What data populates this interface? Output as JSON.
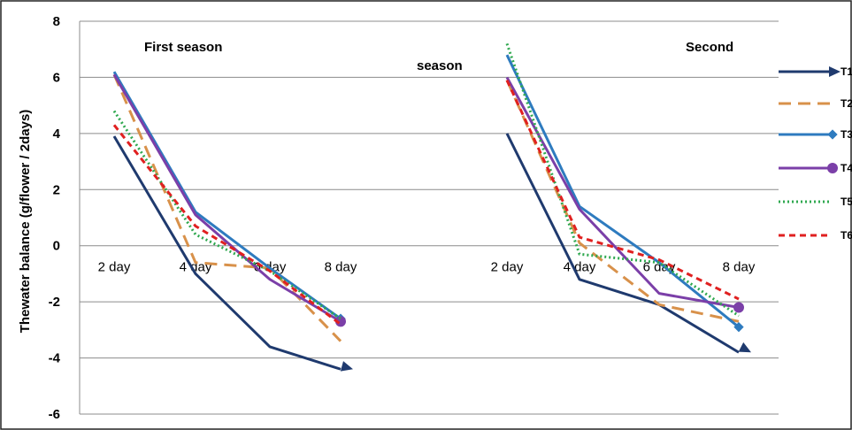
{
  "chart_data": {
    "type": "line",
    "ylabel": "Thewater balance (g/flower / 2days)",
    "ylim": [
      -6,
      8
    ],
    "yticks": [
      "-6",
      "-4",
      "-2",
      "0",
      "2",
      "4",
      "6",
      "8"
    ],
    "grid": true,
    "legend_position": "right",
    "panels": [
      {
        "title": "First season",
        "categories": [
          "2 day",
          "4 day",
          "6 day",
          "8 day"
        ]
      },
      {
        "title_part1": "Second",
        "title_part2": "season",
        "categories": [
          "2 day",
          "4 day",
          "6 day",
          "8 day"
        ]
      }
    ],
    "series": [
      {
        "name": "T1",
        "color": "#1f3a6e",
        "style": "solid",
        "marker": "arrow",
        "first": [
          3.9,
          -1.0,
          -3.6,
          -4.4
        ],
        "second": [
          4.0,
          -1.2,
          -2.1,
          -3.8
        ]
      },
      {
        "name": "T2",
        "color": "#d8914a",
        "style": "longdash",
        "marker": "none",
        "first": [
          6.1,
          -0.6,
          -0.8,
          -3.4
        ],
        "second": [
          5.9,
          0.1,
          -2.1,
          -2.7
        ]
      },
      {
        "name": "T3",
        "color": "#2e7bbf",
        "style": "solid",
        "marker": "diamond",
        "first": [
          6.2,
          1.2,
          -0.8,
          -2.6
        ],
        "second": [
          6.8,
          1.4,
          -0.6,
          -2.9
        ]
      },
      {
        "name": "T4",
        "color": "#7b3fa8",
        "style": "solid",
        "marker": "circle",
        "first": [
          6.1,
          1.1,
          -1.2,
          -2.7
        ],
        "second": [
          6.0,
          1.3,
          -1.7,
          -2.2
        ]
      },
      {
        "name": "T5",
        "color": "#2fa84f",
        "style": "dotted",
        "marker": "none",
        "first": [
          4.8,
          0.4,
          -0.9,
          -2.6
        ],
        "second": [
          7.2,
          -0.3,
          -0.6,
          -2.5
        ]
      },
      {
        "name": "T6",
        "color": "#e02020",
        "style": "dashed",
        "marker": "none",
        "first": [
          4.3,
          0.7,
          -0.9,
          -2.8
        ],
        "second": [
          5.9,
          0.3,
          -0.5,
          -1.9
        ]
      }
    ]
  }
}
